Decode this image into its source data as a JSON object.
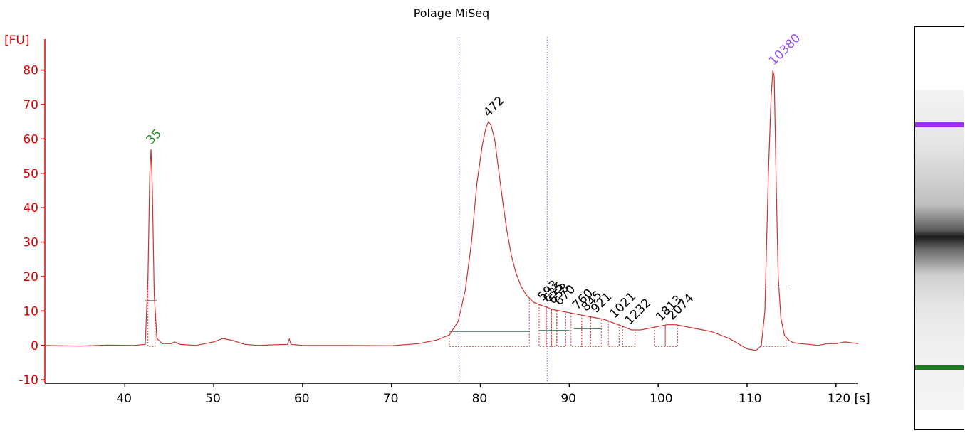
{
  "chart_data": {
    "type": "line",
    "title": "Polage MiSeq",
    "ylabel": "[FU]",
    "xunit": "[s]",
    "xlim": [
      31,
      122.5
    ],
    "ylim": [
      -11,
      89
    ],
    "xticks": [
      40,
      50,
      60,
      70,
      80,
      90,
      100,
      110,
      120
    ],
    "xtick_labels": [
      "40",
      "50",
      "60",
      "70",
      "80",
      "90",
      "100",
      "110",
      "120 [s]"
    ],
    "yticks": [
      -10,
      0,
      10,
      20,
      30,
      40,
      50,
      60,
      70,
      80
    ],
    "grid": false,
    "series": [
      {
        "color": "#cc3333",
        "x": [
          31,
          35,
          38,
          41,
          42.3,
          42.6,
          42.8,
          42.95,
          43.1,
          43.3,
          43.6,
          44.2,
          45.2,
          45.6,
          46.2,
          48,
          50,
          51,
          52,
          53.5,
          55,
          57,
          58.3,
          58.5,
          58.7,
          60,
          65,
          70,
          73,
          75,
          76.5,
          77.5,
          78.3,
          79,
          79.6,
          80.2,
          80.6,
          80.9,
          81.2,
          81.6,
          82,
          82.5,
          83,
          83.5,
          84,
          84.6,
          85.2,
          86,
          86.5,
          87,
          87.6,
          88,
          89,
          90,
          91,
          92,
          93,
          94,
          95,
          96,
          97,
          98,
          99,
          100,
          101,
          102,
          103,
          104,
          105,
          106,
          107,
          108,
          109,
          110,
          111,
          111.6,
          112,
          112.4,
          112.7,
          112.9,
          113.05,
          113.25,
          113.5,
          113.8,
          114.2,
          114.7,
          115.2,
          116,
          117,
          118,
          119,
          120,
          121,
          122.5
        ],
        "y": [
          0,
          -0.2,
          0.1,
          0,
          0.3,
          20,
          50,
          57,
          45,
          15,
          2,
          0.5,
          0.5,
          1,
          0.3,
          0,
          1,
          2,
          1.5,
          0.3,
          0,
          0.2,
          0.3,
          1.8,
          0.3,
          0,
          0,
          -0.1,
          0.5,
          1.5,
          3,
          7,
          16,
          30,
          47,
          58,
          63,
          65,
          64,
          60,
          52,
          42,
          33,
          26,
          21,
          17,
          14.5,
          12.5,
          12,
          11.5,
          11,
          10.5,
          10,
          9.5,
          9,
          8.5,
          8,
          7.5,
          6.5,
          5.5,
          4.5,
          4.5,
          5,
          5.5,
          6,
          6,
          5.5,
          5,
          4.5,
          4,
          3,
          2,
          0.5,
          -1,
          -1.5,
          0,
          10,
          50,
          72,
          80,
          78,
          50,
          20,
          8,
          3,
          1.5,
          0.8,
          0.5,
          0.3,
          0,
          0.5,
          0.5,
          1,
          0.5
        ]
      }
    ],
    "peaks": [
      {
        "label": "35",
        "x": 42.95,
        "y": 57,
        "color": "#1e8c1e"
      },
      {
        "label": "472",
        "x": 80.9,
        "y": 65,
        "color": "#000000"
      },
      {
        "label": "593",
        "x": 87.0,
        "y": 11.5,
        "color": "#000000"
      },
      {
        "label": "635",
        "x": 87.6,
        "y": 11.0,
        "color": "#000000"
      },
      {
        "label": "658",
        "x": 88.2,
        "y": 10.6,
        "color": "#000000"
      },
      {
        "label": "670",
        "x": 88.9,
        "y": 10.2,
        "color": "#000000"
      },
      {
        "label": "760",
        "x": 90.9,
        "y": 9.0,
        "color": "#000000"
      },
      {
        "label": "845",
        "x": 91.9,
        "y": 8.5,
        "color": "#000000"
      },
      {
        "label": "921",
        "x": 93.0,
        "y": 8.0,
        "color": "#000000"
      },
      {
        "label": "1021",
        "x": 95.1,
        "y": 6.5,
        "color": "#000000"
      },
      {
        "label": "1232",
        "x": 96.8,
        "y": 4.6,
        "color": "#000000"
      },
      {
        "label": "1813",
        "x": 100.3,
        "y": 5.6,
        "color": "#000000"
      },
      {
        "label": "2074",
        "x": 101.6,
        "y": 6.0,
        "color": "#000000"
      },
      {
        "label": "10380",
        "x": 113.0,
        "y": 80,
        "color": "#9b50f0"
      }
    ],
    "region_markers_x": [
      77.6,
      87.5
    ],
    "gel_bands": [
      {
        "color": "#9b30ff",
        "position": "upper marker"
      },
      {
        "color": "#1a7a1a",
        "position": "lower marker"
      }
    ]
  }
}
